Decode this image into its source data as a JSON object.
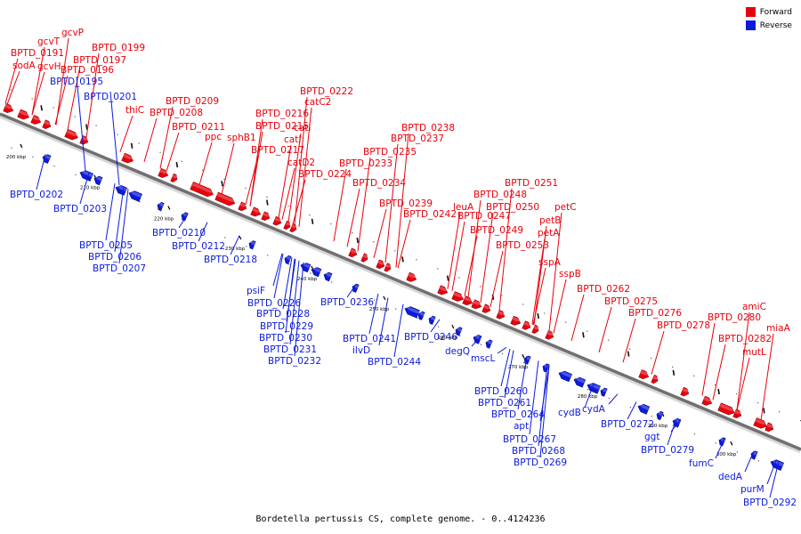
{
  "legend": {
    "forward_label": "Forward",
    "reverse_label": "Reverse",
    "forward_color": "#e8000b",
    "reverse_color": "#0b1adc"
  },
  "caption": "Bordetella pertussis CS, complete genome. - 0..4124236",
  "scale_ticks": [
    "200 kbp",
    "210 kbp",
    "220 kbp",
    "230 kbp",
    "240 kbp",
    "250 kbp",
    "260 kbp",
    "270 kbp",
    "280 kbp",
    "290 kbp",
    "300 kbp"
  ],
  "forward_labels": [
    "sodA",
    "BPTD_0191",
    "gcvT",
    "gcvH",
    "gcvP",
    "BPTD_0196",
    "BPTD_0197",
    "BPTD_0199",
    "thiC",
    "BPTD_0208",
    "BPTD_0209",
    "BPTD_0211",
    "ppc",
    "sphB1",
    "BPTD_0215",
    "BPTD_0216",
    "BPTD_0217",
    "catI",
    "catI",
    "catC2",
    "BPTD_0222",
    "catD2",
    "BPTD_0224",
    "BPTD_0233",
    "BPTD_0234",
    "BPTD_0235",
    "BPTD_0237",
    "BPTD_0238",
    "BPTD_0239",
    "BPTD_0242",
    "leuA",
    "BPTD_0247",
    "BPTD_0248",
    "BPTD_0249",
    "BPTD_0250",
    "BPTD_0251",
    "BPTD_0253",
    "petA",
    "petB",
    "petC",
    "sspA",
    "sspB",
    "BPTD_0262",
    "BPTD_0275",
    "BPTD_0276",
    "BPTD_0278",
    "BPTD_0280",
    "amiC",
    "BPTD_0282",
    "miaA",
    "mutL"
  ],
  "reverse_labels": [
    "BPTD_0195",
    "BPTD_0201",
    "BPTD_0202",
    "BPTD_0203",
    "BPTD_0205",
    "BPTD_0206",
    "BPTD_0207",
    "BPTD_0210",
    "BPTD_0212",
    "BPTD_0218",
    "psiF",
    "BPTD_0226",
    "BPTD_0228",
    "BPTD_0229",
    "BPTD_0230",
    "BPTD_0231",
    "BPTD_0232",
    "BPTD_0236",
    "BPTD_0241",
    "ilvD",
    "BPTD_0244",
    "BPTD_0246",
    "degQ",
    "mscL",
    "BPTD_0260",
    "BPTD_0261",
    "BPTD_0264",
    "apt",
    "BPTD_0267",
    "BPTD_0268",
    "BPTD_0269",
    "cydB",
    "cydA",
    "BPTD_0272",
    "ggt",
    "BPTD_0279",
    "fumC",
    "dedA",
    "purM",
    "BPTD_0292"
  ]
}
